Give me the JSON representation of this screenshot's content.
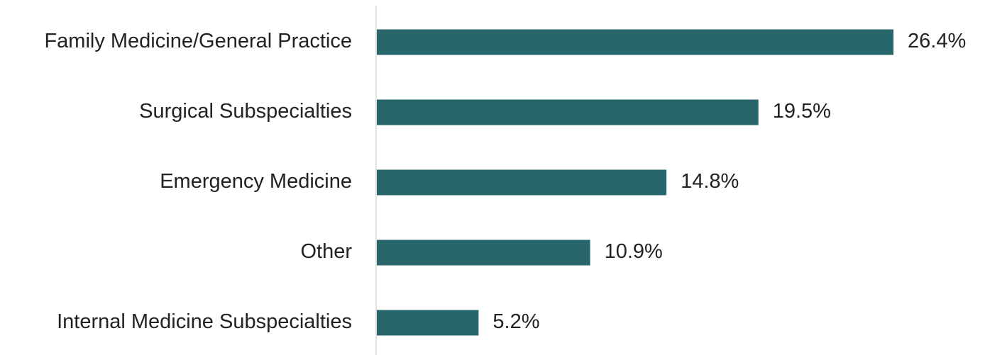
{
  "chart_data": {
    "type": "bar",
    "orientation": "horizontal",
    "categories": [
      "Family Medicine/General Practice",
      "Surgical Subspecialties",
      "Emergency Medicine",
      "Other",
      "Internal Medicine Subspecialties"
    ],
    "values": [
      26.4,
      19.5,
      14.8,
      10.9,
      5.2
    ],
    "value_labels": [
      "26.4%",
      "19.5%",
      "14.8%",
      "10.9%",
      "5.2%"
    ],
    "color": "#27666b"
  }
}
